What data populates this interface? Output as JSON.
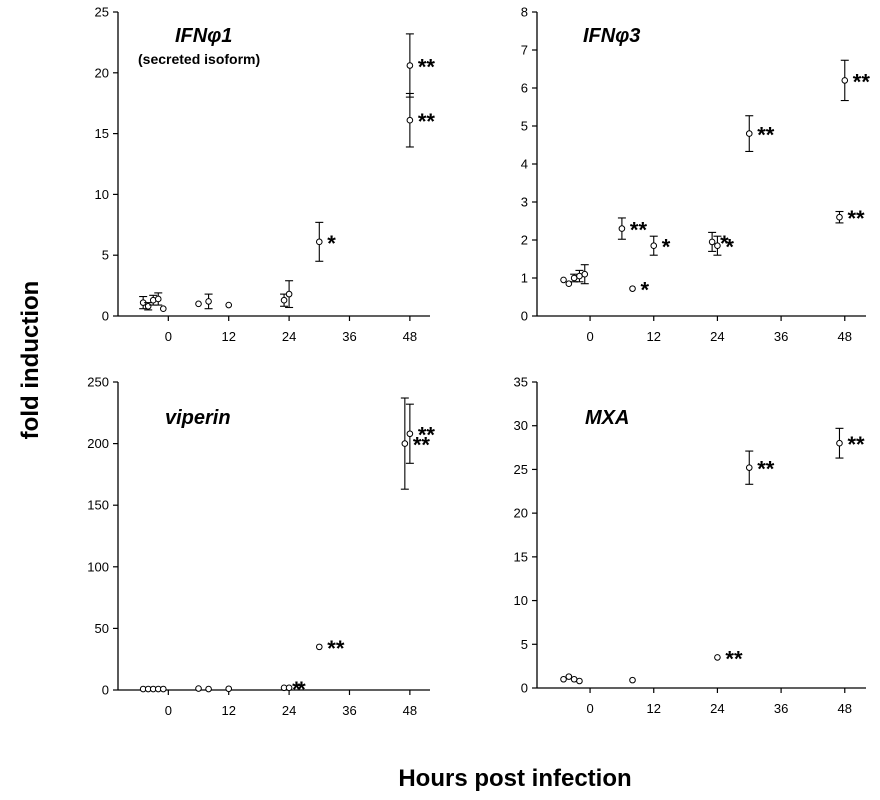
{
  "figure": {
    "ylabel": "fold induction",
    "xlabel": "Hours post infection"
  },
  "chart_data": [
    {
      "type": "scatter",
      "title": "IFNφ1",
      "subtitle": "(secreted isoform)",
      "xlabel": "",
      "ylabel": "",
      "xlim": [
        -10,
        52
      ],
      "ylim": [
        0,
        25
      ],
      "xticks": [
        0,
        12,
        24,
        36,
        48
      ],
      "yticks": [
        0,
        5,
        10,
        15,
        20,
        25
      ],
      "points": [
        {
          "x": -5,
          "y": 1.1,
          "err": 0.5,
          "sig": ""
        },
        {
          "x": -4,
          "y": 0.8,
          "err": 0.3,
          "sig": ""
        },
        {
          "x": -3,
          "y": 1.3,
          "err": 0.4,
          "sig": ""
        },
        {
          "x": -2,
          "y": 1.4,
          "err": 0.5,
          "sig": ""
        },
        {
          "x": -1,
          "y": 0.6,
          "err": 0.0,
          "sig": ""
        },
        {
          "x": 6,
          "y": 1.0,
          "err": 0.0,
          "sig": ""
        },
        {
          "x": 8,
          "y": 1.2,
          "err": 0.6,
          "sig": ""
        },
        {
          "x": 12,
          "y": 0.9,
          "err": 0.0,
          "sig": ""
        },
        {
          "x": 23,
          "y": 1.3,
          "err": 0.5,
          "sig": ""
        },
        {
          "x": 24,
          "y": 1.8,
          "err": 1.1,
          "sig": ""
        },
        {
          "x": 30,
          "y": 6.1,
          "err": 1.6,
          "sig": "*"
        },
        {
          "x": 48,
          "y": 20.6,
          "err": 2.6,
          "sig": "**"
        },
        {
          "x": 48,
          "y": 16.1,
          "err": 2.2,
          "sig": "**"
        }
      ]
    },
    {
      "type": "scatter",
      "title": "IFNφ3",
      "subtitle": "",
      "xlabel": "",
      "ylabel": "",
      "xlim": [
        -10,
        52
      ],
      "ylim": [
        0,
        8
      ],
      "xticks": [
        0,
        12,
        24,
        36,
        48
      ],
      "yticks": [
        0,
        1,
        2,
        3,
        4,
        5,
        6,
        7,
        8
      ],
      "points": [
        {
          "x": -5,
          "y": 0.95,
          "err": 0.0,
          "sig": ""
        },
        {
          "x": -4,
          "y": 0.85,
          "err": 0.0,
          "sig": ""
        },
        {
          "x": -3,
          "y": 1.0,
          "err": 0.1,
          "sig": ""
        },
        {
          "x": -2,
          "y": 1.05,
          "err": 0.15,
          "sig": ""
        },
        {
          "x": -1,
          "y": 1.1,
          "err": 0.25,
          "sig": ""
        },
        {
          "x": 6,
          "y": 2.3,
          "err": 0.28,
          "sig": "**"
        },
        {
          "x": 8,
          "y": 0.72,
          "err": 0.0,
          "sig": "*"
        },
        {
          "x": 12,
          "y": 1.85,
          "err": 0.25,
          "sig": "*"
        },
        {
          "x": 23,
          "y": 1.95,
          "err": 0.25,
          "sig": "*"
        },
        {
          "x": 24,
          "y": 1.85,
          "err": 0.25,
          "sig": "*"
        },
        {
          "x": 30,
          "y": 4.8,
          "err": 0.47,
          "sig": "**"
        },
        {
          "x": 47,
          "y": 2.6,
          "err": 0.15,
          "sig": "**"
        },
        {
          "x": 48,
          "y": 6.2,
          "err": 0.53,
          "sig": "**"
        }
      ]
    },
    {
      "type": "scatter",
      "title": "viperin",
      "subtitle": "",
      "xlabel": "",
      "ylabel": "",
      "xlim": [
        -10,
        52
      ],
      "ylim": [
        0,
        250
      ],
      "xticks": [
        0,
        12,
        24,
        36,
        48
      ],
      "yticks": [
        0,
        50,
        100,
        150,
        200,
        250
      ],
      "points": [
        {
          "x": -5,
          "y": 0.8,
          "err": 0.0,
          "sig": ""
        },
        {
          "x": -4,
          "y": 0.8,
          "err": 0.0,
          "sig": ""
        },
        {
          "x": -3,
          "y": 0.8,
          "err": 0.0,
          "sig": ""
        },
        {
          "x": -2,
          "y": 0.8,
          "err": 0.0,
          "sig": ""
        },
        {
          "x": -1,
          "y": 0.8,
          "err": 0.0,
          "sig": ""
        },
        {
          "x": 6,
          "y": 1.2,
          "err": 0.0,
          "sig": ""
        },
        {
          "x": 8,
          "y": 0.8,
          "err": 0.0,
          "sig": ""
        },
        {
          "x": 12,
          "y": 1.0,
          "err": 0.0,
          "sig": ""
        },
        {
          "x": 23,
          "y": 1.8,
          "err": 0.0,
          "sig": "*"
        },
        {
          "x": 24,
          "y": 1.8,
          "err": 0.0,
          "sig": "*"
        },
        {
          "x": 30,
          "y": 35,
          "err": 0.0,
          "sig": "**"
        },
        {
          "x": 47,
          "y": 200,
          "err": 37,
          "sig": "**"
        },
        {
          "x": 48,
          "y": 208,
          "err": 24,
          "sig": "**"
        }
      ]
    },
    {
      "type": "scatter",
      "title": "MXA",
      "subtitle": "",
      "xlabel": "",
      "ylabel": "",
      "xlim": [
        -10,
        52
      ],
      "ylim": [
        0,
        35
      ],
      "xticks": [
        0,
        12,
        24,
        36,
        48
      ],
      "yticks": [
        0,
        5,
        10,
        15,
        20,
        25,
        30,
        35
      ],
      "points": [
        {
          "x": -5,
          "y": 1.0,
          "err": 0.0,
          "sig": ""
        },
        {
          "x": -4,
          "y": 1.3,
          "err": 0.0,
          "sig": ""
        },
        {
          "x": -3,
          "y": 1.0,
          "err": 0.0,
          "sig": ""
        },
        {
          "x": -2,
          "y": 0.8,
          "err": 0.0,
          "sig": ""
        },
        {
          "x": 8,
          "y": 0.9,
          "err": 0.0,
          "sig": ""
        },
        {
          "x": 24,
          "y": 3.5,
          "err": 0.0,
          "sig": "**"
        },
        {
          "x": 30,
          "y": 25.2,
          "err": 1.9,
          "sig": "**"
        },
        {
          "x": 47,
          "y": 28.0,
          "err": 1.7,
          "sig": "**"
        }
      ]
    }
  ]
}
